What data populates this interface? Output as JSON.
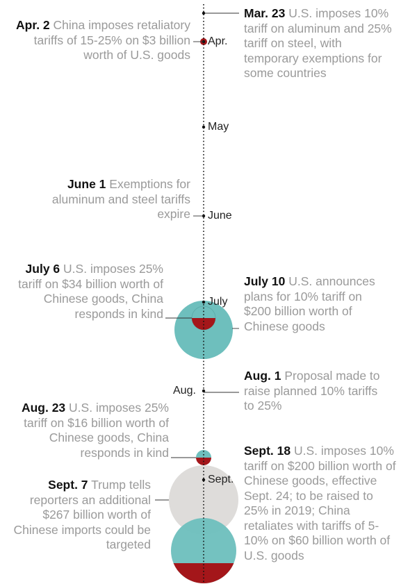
{
  "colors": {
    "us_tariff": "#6ebfbd",
    "china_tariff": "#a4161a",
    "proposed": "#dedcda",
    "line": "#111111",
    "text": "#9a9a9a",
    "date": "#111111"
  },
  "months": [
    "Apr.",
    "May",
    "June",
    "July",
    "Aug.",
    "Sept."
  ],
  "events": [
    {
      "id": "mar23",
      "date": "Mar. 23",
      "text": "U.S. imposes 10% tariff on aluminum and 25% tariff on steel, with temporary exemptions for some countries"
    },
    {
      "id": "apr2",
      "date": "Apr. 2",
      "text": "China imposes retaliatory tariffs of 15-25% on $3 billion worth of U.S. goods"
    },
    {
      "id": "jun1",
      "date": "June 1",
      "text": "Exemptions for aluminum and steel tariffs expire"
    },
    {
      "id": "jul6",
      "date": "July 6",
      "text": "U.S. imposes 25% tariff on $34 billion worth of Chinese goods, China responds in kind"
    },
    {
      "id": "jul10",
      "date": "July 10",
      "text": "U.S. announces plans for 10% tariff on $200 billion worth of Chinese goods"
    },
    {
      "id": "aug1",
      "date": "Aug. 1",
      "text": "Proposal made to raise planned 10% tariffs to 25%"
    },
    {
      "id": "aug23",
      "date": "Aug. 23",
      "text": "U.S. imposes 25% tariff on $16 billion worth of Chinese goods, China responds in kind"
    },
    {
      "id": "sep7",
      "date": "Sept. 7",
      "text": "Trump tells reporters an additional $267 billion worth of Chinese imports could be targeted"
    },
    {
      "id": "sep18",
      "date": "Sept. 18",
      "text": "U.S. imposes 10% tariff on $200 billion worth of Chinese goods, effective Sept. 24; to be raised to 25% in 2019; China retaliates with tariffs of 5-10% on $60 billion worth of U.S. goods"
    }
  ]
}
